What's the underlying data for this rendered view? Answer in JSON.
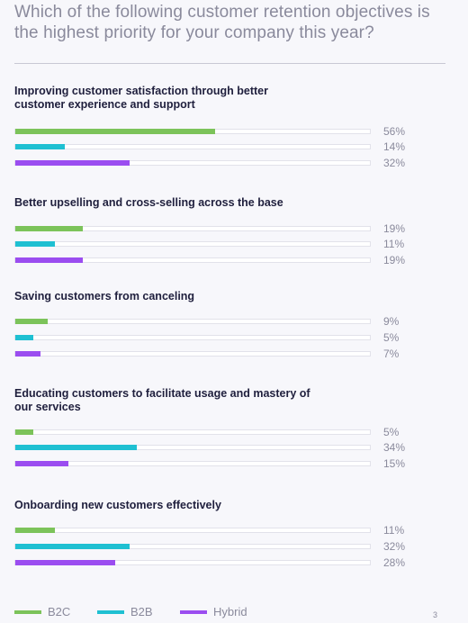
{
  "colors": {
    "b2c": "#7cc35a",
    "b2b": "#1fc0d2",
    "hybrid": "#9b4df0"
  },
  "chart_data": {
    "type": "bar",
    "orientation": "horizontal",
    "title": "Which of the following customer retention objectives is the highest priority for your company this year?",
    "categories": [
      "Improving customer satisfaction through better customer experience and support",
      "Better upselling and cross-selling across the base",
      "Saving customers from canceling",
      "Educating customers to facilitate usage and mastery of our services",
      "Onboarding new customers effectively"
    ],
    "series": [
      {
        "name": "B2C",
        "color": "#7cc35a",
        "values": [
          56,
          19,
          9,
          5,
          11
        ],
        "labels": [
          "56%",
          "19%",
          "9%",
          "5%",
          "11%"
        ]
      },
      {
        "name": "B2B",
        "color": "#1fc0d2",
        "values": [
          14,
          11,
          5,
          34,
          32
        ],
        "labels": [
          "14%",
          "11%",
          "5%",
          "34%",
          "32%"
        ]
      },
      {
        "name": "Hybrid",
        "color": "#9b4df0",
        "values": [
          32,
          19,
          7,
          15,
          28
        ],
        "labels": [
          "32%",
          "19%",
          "7%",
          "15%",
          "28%"
        ]
      }
    ],
    "xlim": [
      0,
      100
    ],
    "legend": "bottom-left"
  },
  "page_number": "3"
}
